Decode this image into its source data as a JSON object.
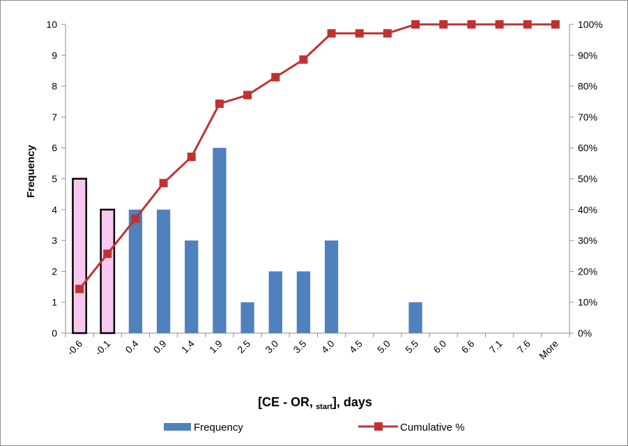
{
  "chart_data": {
    "type": "bar",
    "categories": [
      "-0.6",
      "-0.1",
      "0.4",
      "0.9",
      "1.4",
      "1.9",
      "2.5",
      "3.0",
      "3.5",
      "4.0",
      "4.5",
      "5.0",
      "5.5",
      "6.0",
      "6.6",
      "7.1",
      "7.6",
      "More"
    ],
    "series": [
      {
        "name": "Frequency",
        "type": "bar",
        "axis": "left",
        "values": [
          5,
          4,
          4,
          4,
          3,
          6,
          1,
          2,
          2,
          3,
          0,
          0,
          1,
          0,
          0,
          0,
          0,
          0
        ],
        "highlighted_categories": [
          "-0.6",
          "-0.1"
        ]
      },
      {
        "name": "Cumulative %",
        "type": "line",
        "axis": "right",
        "values": [
          14.3,
          25.7,
          37.1,
          48.6,
          57.1,
          74.3,
          77.1,
          82.9,
          88.6,
          97.1,
          97.1,
          97.1,
          100,
          100,
          100,
          100,
          100,
          100
        ]
      }
    ],
    "xlabel": "[CE - OR, start], days",
    "xlabel_parts": {
      "main": "[CE - OR,",
      "sub": "start",
      "tail": "], days"
    },
    "ylabel": "Frequency",
    "ylim": [
      0,
      10
    ],
    "y2lim": [
      0,
      100
    ],
    "yticks": [
      "0",
      "1",
      "2",
      "3",
      "4",
      "5",
      "6",
      "7",
      "8",
      "9",
      "10"
    ],
    "y2ticks": [
      "0%",
      "10%",
      "20%",
      "30%",
      "40%",
      "50%",
      "60%",
      "70%",
      "80%",
      "90%",
      "100%"
    ],
    "grid": false,
    "legend": {
      "position": "bottom",
      "entries": [
        "Frequency",
        "Cumulative %"
      ]
    },
    "colors": {
      "bar": "#4f81bd",
      "bar_highlight_fill": "#f9c8f0",
      "bar_highlight_stroke": "#000000",
      "line": "#c0312f",
      "axis": "#8c8c8c"
    }
  }
}
